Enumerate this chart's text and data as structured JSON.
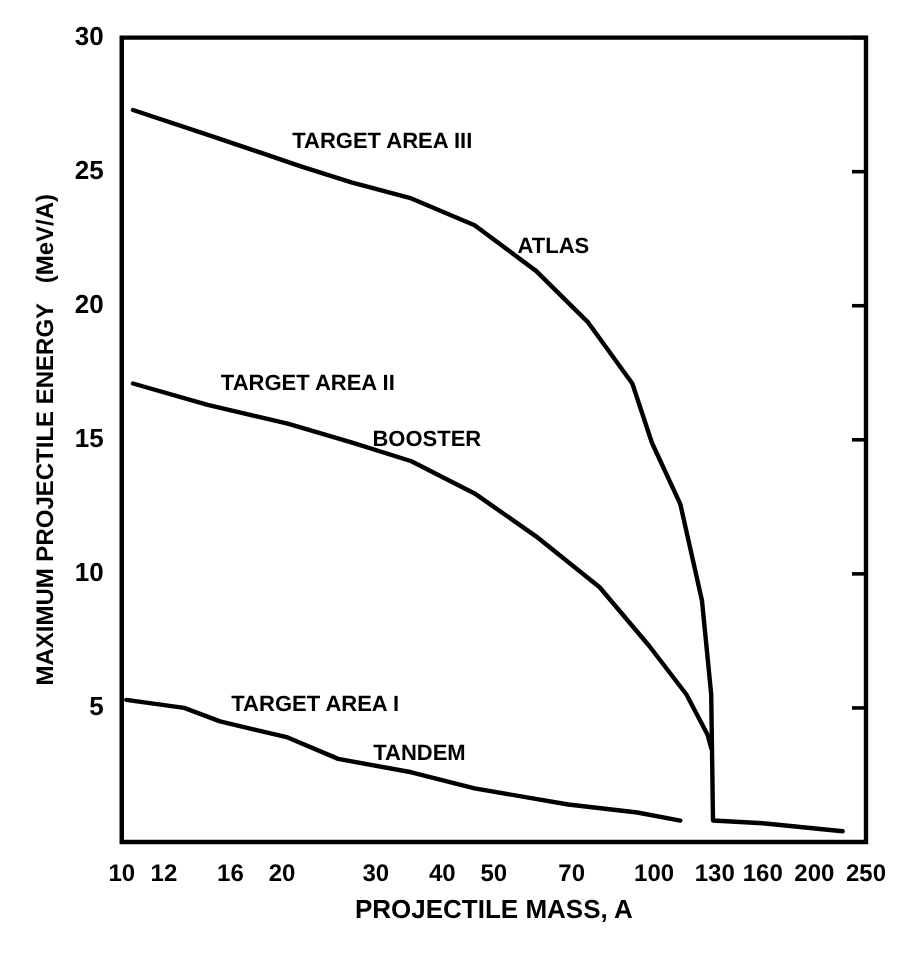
{
  "chart_data": {
    "type": "line",
    "xlabel": "PROJECTILE MASS, A",
    "ylabel": "MAXIMUM PROJECTILE ENERGY   (MeV/A)",
    "log": "x",
    "grid": false,
    "marker": "none",
    "line_style": "solid",
    "xlim": [
      10,
      250
    ],
    "ylim": [
      0,
      30
    ],
    "xticks": [
      10,
      12,
      16,
      20,
      30,
      40,
      50,
      70,
      100,
      130,
      160,
      200,
      250
    ],
    "yticks": [
      5,
      10,
      15,
      20,
      25,
      30
    ],
    "series": [
      {
        "color": "#000000",
        "x": [
          10.5,
          14.9,
          21.7,
          27,
          35,
          46,
          60,
          75,
          91,
          99,
          112,
          123,
          128,
          129,
          160,
          226
        ],
        "values": [
          27.3,
          26.3,
          25.2,
          24.6,
          24.0,
          23.0,
          21.3,
          19.4,
          17.1,
          14.9,
          12.6,
          9.0,
          5.5,
          0.8,
          0.7,
          0.4
        ]
      },
      {
        "color": "#000000",
        "x": [
          10.5,
          14.5,
          20.5,
          27,
          35,
          46,
          60,
          79,
          98,
          115,
          126,
          128
        ],
        "values": [
          17.1,
          16.3,
          15.6,
          14.9,
          14.2,
          13.0,
          11.4,
          9.5,
          7.3,
          5.5,
          4.0,
          3.5
        ]
      },
      {
        "color": "#000000",
        "x": [
          10.2,
          13.1,
          15.3,
          20.5,
          25.5,
          35,
          46,
          69,
          93,
          112
        ],
        "values": [
          5.3,
          5.0,
          4.5,
          3.9,
          3.1,
          2.6,
          2.0,
          1.4,
          1.1,
          0.8
        ]
      }
    ],
    "annotations": [
      "TARGET AREA III",
      "ATLAS",
      "TARGET AREA II",
      "BOOSTER",
      "TARGET AREA I",
      "TANDEM"
    ]
  }
}
